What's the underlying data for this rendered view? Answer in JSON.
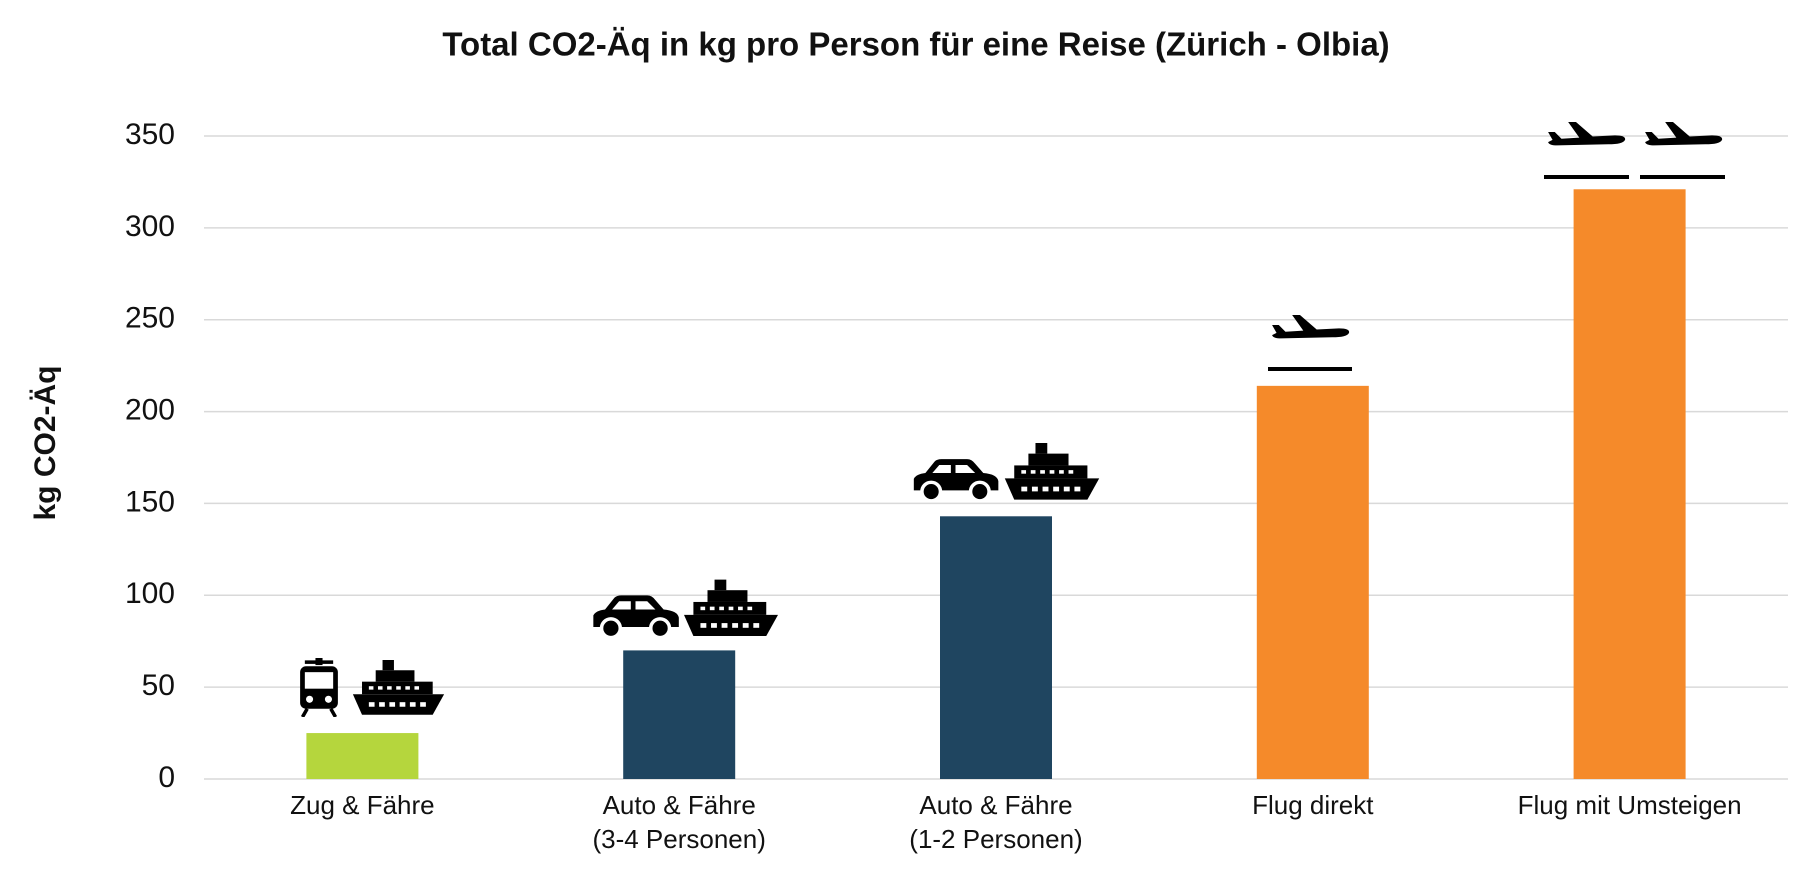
{
  "chart_data": {
    "type": "bar",
    "title": "Total CO2-Äq in kg pro Person für eine Reise (Zürich - Olbia)",
    "y_label": "kg CO2-Äq",
    "categories": [
      "Zug & Fähre",
      "Auto & Fähre\n(3-4 Personen)",
      "Auto & Fähre\n(1-2 Personen)",
      "Flug direkt",
      "Flug mit Umsteigen"
    ],
    "values": [
      25,
      70,
      143,
      214,
      321
    ],
    "colors": [
      "#b5d63d",
      "#1f4560",
      "#1f4560",
      "#f58a2a",
      "#f58a2a"
    ],
    "ylim": [
      0,
      350
    ],
    "yticks": [
      0,
      50,
      100,
      150,
      200,
      250,
      300,
      350
    ],
    "grid": true
  }
}
